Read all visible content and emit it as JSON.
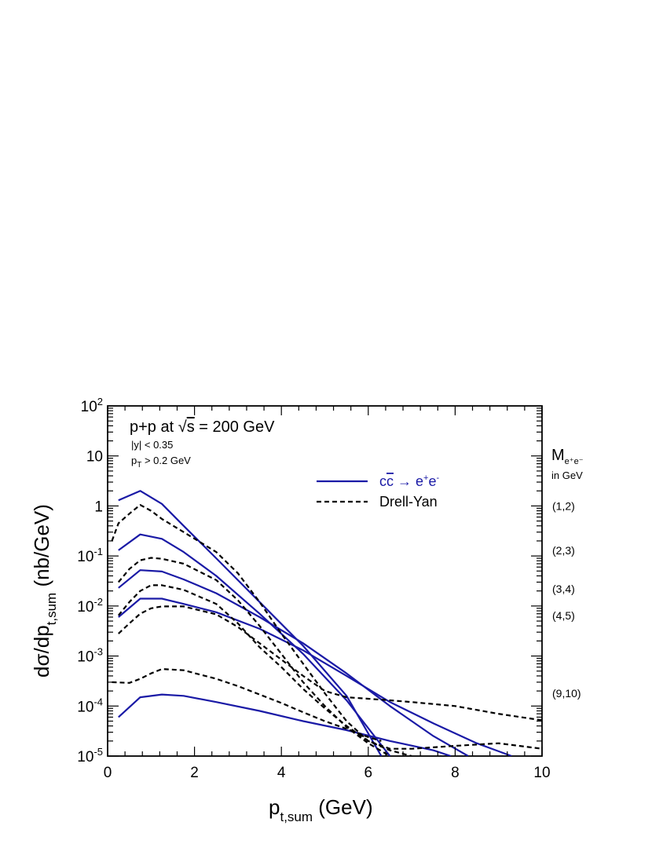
{
  "chart_data": {
    "type": "line",
    "title": "",
    "annotations": {
      "system_prefix": "p+p  at ",
      "sqrt_symbol": "√",
      "s_var": "s",
      "energy": " = 200 GeV",
      "rapidity_cut": "|y| < 0.35",
      "pt_cut_p": "p",
      "pt_cut_sub": "T",
      "pt_cut_rest": " > 0.2 GeV"
    },
    "xlabel": {
      "main": "p",
      "sub": "t,sum",
      "unit": " (GeV)"
    },
    "ylabel": {
      "main": "dσ/dp",
      "sub": "t,sum",
      "unit": "  (nb/GeV)"
    },
    "x_range": [
      0,
      10
    ],
    "y_range": [
      1e-05,
      100
    ],
    "y_scale": "log",
    "x_ticks": [
      {
        "v": 0,
        "label": "0"
      },
      {
        "v": 2,
        "label": "2"
      },
      {
        "v": 4,
        "label": "4"
      },
      {
        "v": 6,
        "label": "6"
      },
      {
        "v": 8,
        "label": "8"
      },
      {
        "v": 10,
        "label": "10"
      }
    ],
    "y_ticks": [
      {
        "v": 100,
        "base": "10",
        "exp": "2"
      },
      {
        "v": 10,
        "base": "10",
        "exp": ""
      },
      {
        "v": 1,
        "base": "1",
        "exp": ""
      },
      {
        "v": 0.1,
        "base": "10",
        "exp": "-1"
      },
      {
        "v": 0.01,
        "base": "10",
        "exp": "-2"
      },
      {
        "v": 0.001,
        "base": "10",
        "exp": "-3"
      },
      {
        "v": 0.0001,
        "base": "10",
        "exp": "-4"
      },
      {
        "v": 1e-05,
        "base": "10",
        "exp": "-5"
      }
    ],
    "grid": false,
    "legend": {
      "placement": "top-right",
      "entries": [
        {
          "label_pre": "c",
          "label_bar": "c",
          "label_arrow": " → e",
          "label_sup1": "+",
          "label_e2": "e",
          "label_sup2": "-",
          "color": "#1a1aa6",
          "style": "solid"
        },
        {
          "label": "Drell-Yan",
          "color": "#000000",
          "style": "dashed"
        }
      ]
    },
    "mass_header": {
      "main": "M",
      "sub": "e⁺e⁻",
      "unit": "in GeV"
    },
    "mass_bins": [
      "(1,2)",
      "(2,3)",
      "(3,4)",
      "(4,5)",
      "(9,10)"
    ],
    "mass_bin_y": [
      1.0,
      0.13,
      0.022,
      0.0065,
      0.00018
    ],
    "colors": {
      "charm": "#1a1aa6",
      "drell_yan": "#000000"
    },
    "series": [
      {
        "bin": "(1,2)",
        "kind": "charm",
        "x": [
          0.25,
          0.75,
          1.25,
          1.75,
          2.5,
          3.5,
          4.5,
          5.5,
          6.3
        ],
        "y": [
          1.3,
          2.0,
          1.1,
          0.4,
          0.09,
          0.012,
          0.0016,
          0.00016,
          1e-05
        ]
      },
      {
        "bin": "(2,3)",
        "kind": "charm",
        "x": [
          0.25,
          0.75,
          1.25,
          1.75,
          2.5,
          3.5,
          4.5,
          5.5,
          6.5
        ],
        "y": [
          0.13,
          0.27,
          0.22,
          0.12,
          0.04,
          0.007,
          0.0011,
          0.00013,
          1e-05
        ]
      },
      {
        "bin": "(3,4)",
        "kind": "charm",
        "x": [
          0.25,
          0.75,
          1.25,
          1.75,
          2.5,
          3.5,
          4.5,
          5.5,
          6.5,
          7.5,
          8.3
        ],
        "y": [
          0.023,
          0.052,
          0.049,
          0.034,
          0.018,
          0.006,
          0.0018,
          0.00045,
          0.0001,
          2.5e-05,
          1e-05
        ]
      },
      {
        "bin": "(4,5)",
        "kind": "charm",
        "x": [
          0.25,
          0.75,
          1.25,
          1.75,
          2.5,
          3.5,
          4.5,
          5.5,
          6.5,
          7.5,
          8.5,
          9.3
        ],
        "y": [
          0.006,
          0.014,
          0.014,
          0.011,
          0.0075,
          0.0035,
          0.0013,
          0.0004,
          0.00012,
          4.5e-05,
          1.8e-05,
          1e-05
        ]
      },
      {
        "bin": "(9,10)",
        "kind": "charm",
        "x": [
          0.25,
          0.75,
          1.25,
          1.75,
          2.5,
          3.5,
          4.5,
          5.5,
          6.5,
          7.5,
          7.9
        ],
        "y": [
          6e-05,
          0.00015,
          0.00017,
          0.00016,
          0.00012,
          8e-05,
          5e-05,
          3.3e-05,
          2e-05,
          1.3e-05,
          1e-05
        ]
      },
      {
        "bin": "(1,2)",
        "kind": "drell_yan",
        "x": [
          0.1,
          0.25,
          0.5,
          0.75,
          1.0,
          1.25,
          1.75,
          2.5,
          3.0,
          3.5,
          4.0,
          4.5,
          5.0,
          5.5,
          6.0,
          6.5,
          7.0
        ],
        "y": [
          0.2,
          0.45,
          0.7,
          1.05,
          0.8,
          0.55,
          0.3,
          0.12,
          0.045,
          0.012,
          0.0028,
          0.0007,
          0.00018,
          5e-05,
          2e-05,
          1.3e-05,
          1e-05
        ]
      },
      {
        "bin": "(2,3)",
        "kind": "drell_yan",
        "x": [
          0.25,
          0.5,
          0.75,
          1.0,
          1.25,
          1.75,
          2.5,
          3.0,
          3.5,
          4.0,
          4.5,
          5.0,
          5.5,
          6.0,
          6.5
        ],
        "y": [
          0.03,
          0.055,
          0.082,
          0.092,
          0.088,
          0.07,
          0.033,
          0.013,
          0.004,
          0.0011,
          0.0003,
          0.0001,
          3.8e-05,
          1.8e-05,
          1e-05
        ]
      },
      {
        "bin": "(3,4)",
        "kind": "drell_yan",
        "x": [
          0.25,
          0.5,
          0.75,
          1.0,
          1.25,
          1.75,
          2.5,
          3.0,
          3.5,
          4.0,
          4.5,
          5.0,
          5.5,
          6.0,
          6.5,
          7.0,
          8.0,
          9.0,
          10.0
        ],
        "y": [
          0.0065,
          0.012,
          0.02,
          0.026,
          0.026,
          0.021,
          0.011,
          0.0045,
          0.0015,
          0.0006,
          0.00022,
          9e-05,
          4e-05,
          2e-05,
          1.4e-05,
          1.4e-05,
          1.6e-05,
          1.8e-05,
          1.4e-05
        ]
      },
      {
        "bin": "(4,5)",
        "kind": "drell_yan",
        "x": [
          0.25,
          0.5,
          0.75,
          1.0,
          1.25,
          1.75,
          2.5,
          3.0,
          3.5,
          4.0,
          4.5,
          5.0,
          5.5,
          6.0,
          6.5,
          7.0,
          8.0,
          9.0,
          10.0
        ],
        "y": [
          0.0028,
          0.0045,
          0.007,
          0.009,
          0.0098,
          0.0098,
          0.0068,
          0.0038,
          0.0018,
          0.00085,
          0.0004,
          0.0002,
          0.00015,
          0.00014,
          0.00013,
          0.00012,
          0.0001,
          7e-05,
          5.2e-05
        ]
      },
      {
        "bin": "(9,10)",
        "kind": "drell_yan",
        "x": [
          0.1,
          0.5,
          0.75,
          1.0,
          1.25,
          1.75,
          2.5,
          3.0,
          3.5,
          4.0,
          4.5,
          5.0,
          5.5,
          6.0,
          6.3
        ],
        "y": [
          0.0003,
          0.00029,
          0.00035,
          0.00045,
          0.00055,
          0.00052,
          0.00035,
          0.00025,
          0.00017,
          0.000115,
          7.5e-05,
          5e-05,
          3.5e-05,
          2.4e-05,
          2e-05
        ]
      }
    ]
  }
}
